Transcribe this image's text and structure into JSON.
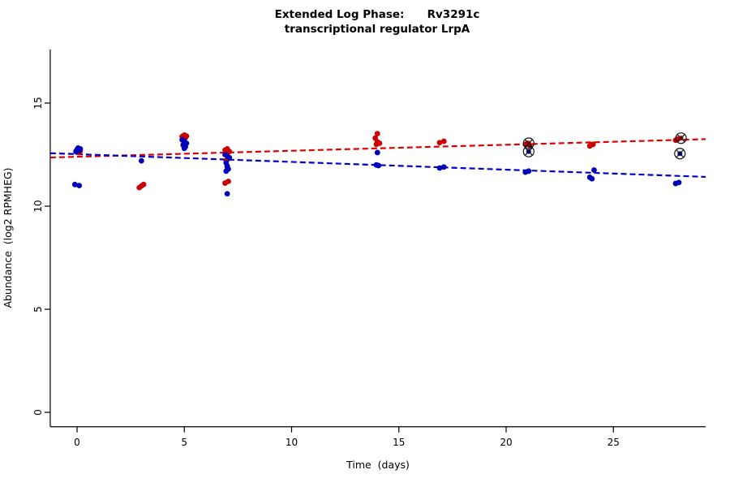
{
  "chart_data": {
    "type": "scatter",
    "title": "Extended Log Phase:      Rv3291c",
    "subtitle": "transcriptional regulator LrpA",
    "xlabel": "Time  (days)",
    "ylabel": "Abundance  (log2 RPMHEG)",
    "xlim": [
      -1.25,
      29.3
    ],
    "ylim": [
      -0.7,
      17.6
    ],
    "xticks": [
      0,
      5,
      10,
      15,
      20,
      25
    ],
    "yticks": [
      0,
      5,
      10,
      15
    ],
    "grid": false,
    "legend": "none",
    "colors": {
      "red_series": "#cc0000",
      "blue_series": "#0000bb",
      "circled_marker": "#111111"
    },
    "series": [
      {
        "name": "red",
        "color": "#cc0000",
        "points": [
          [
            0,
            12.62
          ],
          [
            0.05,
            12.72
          ],
          [
            0.1,
            12.78
          ],
          [
            0.15,
            12.68
          ],
          [
            0.1,
            12.6
          ],
          [
            2.9,
            10.9
          ],
          [
            3.0,
            10.98
          ],
          [
            3.1,
            11.05
          ],
          [
            4.9,
            13.38
          ],
          [
            5.0,
            13.45
          ],
          [
            5.05,
            13.32
          ],
          [
            5.1,
            13.4
          ],
          [
            5.0,
            13.28
          ],
          [
            4.95,
            12.95
          ],
          [
            6.9,
            12.72
          ],
          [
            7.0,
            12.78
          ],
          [
            7.1,
            12.65
          ],
          [
            6.95,
            12.55
          ],
          [
            7.0,
            12.45
          ],
          [
            7.05,
            12.3
          ],
          [
            6.95,
            12.2
          ],
          [
            7.0,
            11.9
          ],
          [
            6.9,
            11.12
          ],
          [
            7.05,
            11.2
          ],
          [
            13.9,
            13.3
          ],
          [
            14.0,
            13.52
          ],
          [
            14.0,
            13.12
          ],
          [
            14.1,
            13.05
          ],
          [
            13.95,
            13.0
          ],
          [
            16.9,
            13.08
          ],
          [
            17.1,
            13.15
          ],
          [
            20.9,
            13.0
          ],
          [
            21.0,
            13.05
          ],
          [
            21.1,
            12.95
          ],
          [
            23.9,
            12.92
          ],
          [
            24.05,
            13.0
          ],
          [
            27.9,
            13.2
          ],
          [
            28.0,
            13.25
          ]
        ]
      },
      {
        "name": "blue",
        "color": "#0000bb",
        "points": [
          [
            0,
            12.75
          ],
          [
            0.05,
            12.82
          ],
          [
            0.1,
            12.7
          ],
          [
            0.15,
            12.78
          ],
          [
            -0.05,
            12.65
          ],
          [
            -0.1,
            11.05
          ],
          [
            0.1,
            11.0
          ],
          [
            3.0,
            12.2
          ],
          [
            4.9,
            13.22
          ],
          [
            5.0,
            13.15
          ],
          [
            5.1,
            13.05
          ],
          [
            4.95,
            12.98
          ],
          [
            5.05,
            12.88
          ],
          [
            5.0,
            12.8
          ],
          [
            6.9,
            12.5
          ],
          [
            7.0,
            12.42
          ],
          [
            7.1,
            12.35
          ],
          [
            6.95,
            12.1
          ],
          [
            7.0,
            11.95
          ],
          [
            7.05,
            11.8
          ],
          [
            6.95,
            11.7
          ],
          [
            7.0,
            10.6
          ],
          [
            14.0,
            12.6
          ],
          [
            13.95,
            12.0
          ],
          [
            14.05,
            11.97
          ],
          [
            16.9,
            11.85
          ],
          [
            17.1,
            11.9
          ],
          [
            20.9,
            11.65
          ],
          [
            21.05,
            11.7
          ],
          [
            23.9,
            11.4
          ],
          [
            24.0,
            11.33
          ],
          [
            24.1,
            11.75
          ],
          [
            27.9,
            11.1
          ],
          [
            28.05,
            11.15
          ]
        ]
      }
    ],
    "circled_points": [
      {
        "x": 21.05,
        "y": 13.05,
        "color": "#cc0000"
      },
      {
        "x": 21.05,
        "y": 12.65,
        "color": "#0000bb"
      },
      {
        "x": 28.15,
        "y": 13.3,
        "color": "#cc0000"
      },
      {
        "x": 28.1,
        "y": 12.55,
        "color": "#0000bb"
      }
    ],
    "trend_lines": [
      {
        "name": "red-trend-line",
        "color": "#dd0000",
        "x0": -1.25,
        "y0": 12.36,
        "x1": 29.3,
        "y1": 13.25,
        "dash": "7,4"
      },
      {
        "name": "blue-trend-line",
        "color": "#0000cc",
        "x0": -1.25,
        "y0": 12.57,
        "x1": 29.3,
        "y1": 11.42,
        "dash": "7,4"
      }
    ]
  }
}
